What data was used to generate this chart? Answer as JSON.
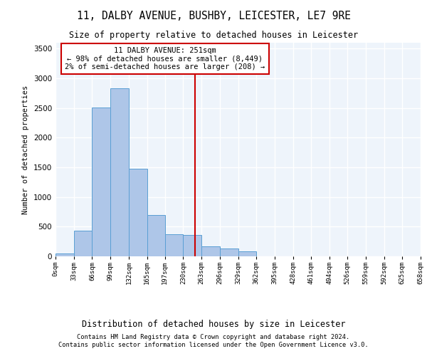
{
  "title": "11, DALBY AVENUE, BUSHBY, LEICESTER, LE7 9RE",
  "subtitle": "Size of property relative to detached houses in Leicester",
  "xlabel": "Distribution of detached houses by size in Leicester",
  "ylabel": "Number of detached properties",
  "footer_line1": "Contains HM Land Registry data © Crown copyright and database right 2024.",
  "footer_line2": "Contains public sector information licensed under the Open Government Licence v3.0.",
  "annotation_line1": "11 DALBY AVENUE: 251sqm",
  "annotation_line2": "← 98% of detached houses are smaller (8,449)",
  "annotation_line3": "2% of semi-detached houses are larger (208) →",
  "property_size": 251,
  "bin_edges": [
    0,
    33,
    66,
    99,
    132,
    165,
    197,
    230,
    263,
    296,
    329,
    362,
    395,
    428,
    461,
    494,
    526,
    559,
    592,
    625,
    658
  ],
  "bar_heights": [
    50,
    430,
    2510,
    2830,
    1480,
    700,
    370,
    360,
    170,
    130,
    80,
    0,
    0,
    0,
    0,
    0,
    0,
    0,
    0,
    0
  ],
  "bar_color": "#aec6e8",
  "bar_edge_color": "#5a9fd4",
  "vline_color": "#cc0000",
  "vline_x": 251,
  "annotation_box_color": "#cc0000",
  "background_color": "#eef4fb",
  "grid_color": "#ffffff",
  "ylim": [
    0,
    3600
  ],
  "yticks": [
    0,
    500,
    1000,
    1500,
    2000,
    2500,
    3000,
    3500
  ]
}
